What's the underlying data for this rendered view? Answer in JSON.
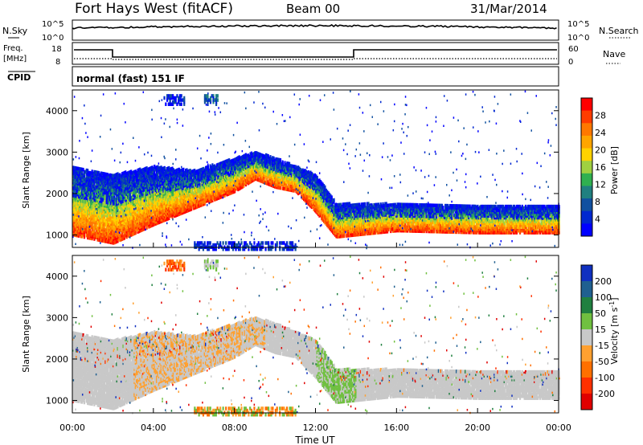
{
  "header": {
    "station": "Fort Hays West (fitACF)",
    "beam": "Beam 00",
    "date": "31/Mar/2014"
  },
  "strips": {
    "nsky_label": "N.Sky",
    "nsky_ticks": [
      "10^5",
      "10^0"
    ],
    "nsearch_label": "N.Search",
    "nsearch_ticks": [
      "10^5",
      "10^0"
    ],
    "freq_label": [
      "Freq.",
      "[MHz]"
    ],
    "freq_ticks": [
      "18",
      "8"
    ],
    "nave_label": "Nave",
    "nave_ticks": [
      "60",
      "0"
    ],
    "cpid_label": "CPID",
    "cpid_text": "normal (fast) 151 IF"
  },
  "chart_data": [
    {
      "type": "heatmap",
      "panel": "power",
      "ylabel": "Slant Range [km]",
      "ylim": [
        700,
        4500
      ],
      "yticks": [
        1000,
        2000,
        3000,
        4000
      ],
      "xlim": [
        0,
        24
      ],
      "colorbar": {
        "label": "Power [dB]",
        "ticks": [
          "28",
          "24",
          "20",
          "16",
          "12",
          "8",
          "4"
        ],
        "colors": [
          "#ff0000",
          "#ff3c00",
          "#ff7800",
          "#ffa500",
          "#ffd200",
          "#a0d040",
          "#30b050",
          "#208080",
          "#1050a0",
          "#0028d0",
          "#0000ff"
        ]
      },
      "bands": [
        {
          "hour": 0,
          "lower_km": 1050,
          "upper_km": 2700
        },
        {
          "hour": 2,
          "lower_km": 850,
          "upper_km": 2500
        },
        {
          "hour": 4,
          "lower_km": 1300,
          "upper_km": 2700
        },
        {
          "hour": 6,
          "lower_km": 1700,
          "upper_km": 2600
        },
        {
          "hour": 8,
          "lower_km": 2100,
          "upper_km": 2900
        },
        {
          "hour": 9,
          "lower_km": 2400,
          "upper_km": 3050
        },
        {
          "hour": 10,
          "lower_km": 2200,
          "upper_km": 2900
        },
        {
          "hour": 11,
          "lower_km": 2100,
          "upper_km": 2700
        },
        {
          "hour": 12,
          "lower_km": 1600,
          "upper_km": 2500
        },
        {
          "hour": 13,
          "lower_km": 1000,
          "upper_km": 1800
        },
        {
          "hour": 14,
          "lower_km": 1050,
          "upper_km": 1800
        },
        {
          "hour": 16,
          "lower_km": 1150,
          "upper_km": 1800
        },
        {
          "hour": 20,
          "lower_km": 1100,
          "upper_km": 1750
        },
        {
          "hour": 24,
          "lower_km": 1100,
          "upper_km": 1750
        }
      ]
    },
    {
      "type": "heatmap",
      "panel": "velocity",
      "ylabel": "Slant Range [km]",
      "ylim": [
        700,
        4500
      ],
      "yticks": [
        1000,
        2000,
        3000,
        4000
      ],
      "xlim": [
        0,
        24
      ],
      "xticks": [
        "00:00",
        "04:00",
        "08:00",
        "12:00",
        "16:00",
        "20:00",
        "00:00"
      ],
      "xlabel": "Time UT",
      "colorbar": {
        "label": "Velocity [m s^-1]",
        "ticks": [
          "200",
          "100",
          "50",
          "15",
          "-15",
          "-50",
          "-100",
          "-200"
        ],
        "colors": [
          "#1030c0",
          "#206090",
          "#208040",
          "#70c040",
          "#c8c8c8",
          "#ffa030",
          "#ff7000",
          "#ff3000",
          "#e00000"
        ]
      }
    }
  ]
}
